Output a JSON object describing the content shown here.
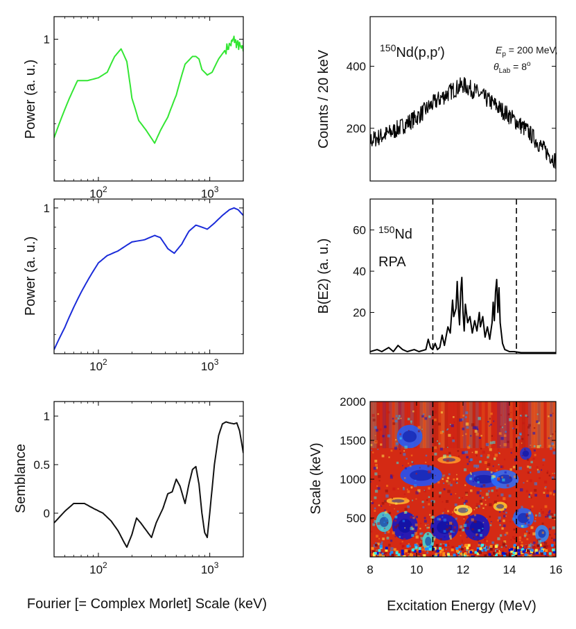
{
  "chart_data": [
    {
      "id": "p1",
      "type": "line",
      "scale": "loglog",
      "xlim": [
        40,
        2000
      ],
      "ylim": [
        0.55,
        1.1
      ],
      "ylabel": "Power (a. u.)",
      "xlabel": "",
      "xticks": [
        {
          "v": 100,
          "base": "10",
          "exp": "2"
        },
        {
          "v": 1000,
          "base": "10",
          "exp": "3"
        }
      ],
      "yticks": [
        {
          "v": 1,
          "label": "1"
        }
      ],
      "series": [
        {
          "name": "power",
          "color": "#33e633",
          "points": [
            [
              40,
              0.66
            ],
            [
              55,
              0.78
            ],
            [
              65,
              0.84
            ],
            [
              80,
              0.84
            ],
            [
              100,
              0.85
            ],
            [
              120,
              0.87
            ],
            [
              140,
              0.93
            ],
            [
              160,
              0.96
            ],
            [
              180,
              0.91
            ],
            [
              200,
              0.78
            ],
            [
              230,
              0.71
            ],
            [
              270,
              0.68
            ],
            [
              320,
              0.645
            ],
            [
              360,
              0.68
            ],
            [
              420,
              0.72
            ],
            [
              500,
              0.79
            ],
            [
              600,
              0.9
            ],
            [
              700,
              0.93
            ],
            [
              750,
              0.93
            ],
            [
              800,
              0.92
            ],
            [
              850,
              0.88
            ],
            [
              950,
              0.86
            ],
            [
              1050,
              0.87
            ],
            [
              1200,
              0.92
            ],
            [
              1400,
              0.96
            ],
            [
              1550,
              0.98
            ],
            [
              1650,
              1.0
            ],
            [
              1750,
              0.98
            ],
            [
              1850,
              0.97
            ],
            [
              2000,
              0.95
            ]
          ]
        }
      ]
    },
    {
      "id": "p2",
      "type": "line",
      "scale": "loglog",
      "xlim": [
        40,
        2000
      ],
      "ylim": [
        0.45,
        1.05
      ],
      "ylabel": "Power (a. u.)",
      "xlabel": "",
      "xticks": [
        {
          "v": 100,
          "base": "10",
          "exp": "2"
        },
        {
          "v": 1000,
          "base": "10",
          "exp": "3"
        }
      ],
      "yticks": [
        {
          "v": 1,
          "label": "1"
        }
      ],
      "series": [
        {
          "name": "power",
          "color": "#1a2bd9",
          "points": [
            [
              40,
              0.46
            ],
            [
              50,
              0.52
            ],
            [
              60,
              0.58
            ],
            [
              70,
              0.63
            ],
            [
              85,
              0.69
            ],
            [
              100,
              0.74
            ],
            [
              120,
              0.77
            ],
            [
              150,
              0.79
            ],
            [
              200,
              0.83
            ],
            [
              260,
              0.84
            ],
            [
              320,
              0.86
            ],
            [
              360,
              0.85
            ],
            [
              420,
              0.8
            ],
            [
              480,
              0.78
            ],
            [
              560,
              0.82
            ],
            [
              650,
              0.88
            ],
            [
              750,
              0.91
            ],
            [
              850,
              0.9
            ],
            [
              950,
              0.89
            ],
            [
              1100,
              0.92
            ],
            [
              1300,
              0.96
            ],
            [
              1500,
              0.99
            ],
            [
              1650,
              1.0
            ],
            [
              1800,
              0.99
            ],
            [
              2000,
              0.96
            ]
          ]
        }
      ]
    },
    {
      "id": "p3",
      "type": "line",
      "scale": "semilogx",
      "xlim": [
        40,
        2000
      ],
      "ylim": [
        -0.45,
        1.15
      ],
      "ylabel": "Semblance",
      "xlabel": "Fourier [= Complex Morlet] Scale (keV)",
      "xticks": [
        {
          "v": 100,
          "base": "10",
          "exp": "2"
        },
        {
          "v": 1000,
          "base": "10",
          "exp": "3"
        }
      ],
      "yticks": [
        {
          "v": 0,
          "label": "0"
        },
        {
          "v": 0.5,
          "label": "0.5"
        },
        {
          "v": 1,
          "label": "1"
        }
      ],
      "series": [
        {
          "name": "semblance",
          "color": "#111111",
          "points": [
            [
              40,
              -0.1
            ],
            [
              50,
              0.02
            ],
            [
              60,
              0.1
            ],
            [
              75,
              0.1
            ],
            [
              90,
              0.05
            ],
            [
              110,
              0.0
            ],
            [
              130,
              -0.08
            ],
            [
              150,
              -0.18
            ],
            [
              170,
              -0.3
            ],
            [
              180,
              -0.35
            ],
            [
              200,
              -0.22
            ],
            [
              220,
              -0.05
            ],
            [
              240,
              -0.1
            ],
            [
              270,
              -0.18
            ],
            [
              300,
              -0.25
            ],
            [
              330,
              -0.1
            ],
            [
              380,
              0.05
            ],
            [
              420,
              0.2
            ],
            [
              460,
              0.22
            ],
            [
              500,
              0.35
            ],
            [
              540,
              0.28
            ],
            [
              600,
              0.1
            ],
            [
              650,
              0.3
            ],
            [
              700,
              0.45
            ],
            [
              750,
              0.48
            ],
            [
              800,
              0.3
            ],
            [
              850,
              0.0
            ],
            [
              900,
              -0.2
            ],
            [
              950,
              -0.25
            ],
            [
              1000,
              0.0
            ],
            [
              1100,
              0.5
            ],
            [
              1200,
              0.8
            ],
            [
              1300,
              0.92
            ],
            [
              1400,
              0.94
            ],
            [
              1500,
              0.93
            ],
            [
              1650,
              0.92
            ],
            [
              1750,
              0.93
            ],
            [
              1850,
              0.85
            ],
            [
              1950,
              0.7
            ],
            [
              2000,
              0.62
            ]
          ]
        }
      ]
    },
    {
      "id": "p4",
      "type": "line",
      "scale": "linear",
      "xlim": [
        8,
        16
      ],
      "ylim": [
        30,
        560
      ],
      "ylabel": "Counts / 20 keV",
      "xlabel": "",
      "yticks": [
        {
          "v": 200,
          "label": "200"
        },
        {
          "v": 400,
          "label": "400"
        }
      ],
      "annotations": {
        "nucleus_mass": "150",
        "reaction": "Nd(p,p′)",
        "ep_symbol": "E",
        "ep_sub": "p",
        "ep_value": " = 200 MeV,",
        "theta_symbol": "θ",
        "theta_sub": "Lab",
        "theta_value": " = 8",
        "theta_unit": "o"
      },
      "series": [
        {
          "name": "spectrum",
          "color": "#000000",
          "envelope": [
            [
              8,
              160
            ],
            [
              9,
              190
            ],
            [
              10,
              235
            ],
            [
              10.8,
              285
            ],
            [
              11.5,
              320
            ],
            [
              12,
              340
            ],
            [
              12.5,
              320
            ],
            [
              13.2,
              285
            ],
            [
              14,
              240
            ],
            [
              14.8,
              190
            ],
            [
              15.5,
              130
            ],
            [
              16,
              95
            ]
          ],
          "noise": 28,
          "step": 0.02
        }
      ]
    },
    {
      "id": "p5",
      "type": "line",
      "scale": "linear",
      "xlim": [
        8,
        16
      ],
      "ylim": [
        0,
        75
      ],
      "ylabel": "B(E2) (a. u.)",
      "xlabel": "",
      "yticks": [
        {
          "v": 20,
          "label": "20"
        },
        {
          "v": 40,
          "label": "40"
        },
        {
          "v": 60,
          "label": "60"
        }
      ],
      "annotations": {
        "nucleus_mass": "150",
        "nucleus": "Nd",
        "model": "RPA"
      },
      "dashed_x": [
        10.7,
        14.3
      ],
      "series": [
        {
          "name": "strength",
          "color": "#000000",
          "points": [
            [
              8,
              1
            ],
            [
              8.3,
              2
            ],
            [
              8.5,
              1
            ],
            [
              8.8,
              3
            ],
            [
              9.0,
              1
            ],
            [
              9.2,
              4
            ],
            [
              9.4,
              2
            ],
            [
              9.6,
              1
            ],
            [
              9.9,
              2
            ],
            [
              10.1,
              1
            ],
            [
              10.4,
              2
            ],
            [
              10.5,
              7
            ],
            [
              10.6,
              3
            ],
            [
              10.7,
              2
            ],
            [
              10.8,
              5
            ],
            [
              10.9,
              2
            ],
            [
              11.0,
              3
            ],
            [
              11.1,
              9
            ],
            [
              11.2,
              4
            ],
            [
              11.35,
              13
            ],
            [
              11.45,
              10
            ],
            [
              11.55,
              26
            ],
            [
              11.6,
              18
            ],
            [
              11.7,
              22
            ],
            [
              11.75,
              35
            ],
            [
              11.8,
              22
            ],
            [
              11.85,
              14
            ],
            [
              11.9,
              30
            ],
            [
              11.95,
              37
            ],
            [
              12.0,
              20
            ],
            [
              12.05,
              11
            ],
            [
              12.1,
              24
            ],
            [
              12.2,
              15
            ],
            [
              12.3,
              18
            ],
            [
              12.4,
              10
            ],
            [
              12.5,
              16
            ],
            [
              12.6,
              11
            ],
            [
              12.7,
              20
            ],
            [
              12.75,
              13
            ],
            [
              12.85,
              18
            ],
            [
              12.95,
              8
            ],
            [
              13.05,
              13
            ],
            [
              13.15,
              7
            ],
            [
              13.25,
              15
            ],
            [
              13.3,
              25
            ],
            [
              13.35,
              16
            ],
            [
              13.4,
              30
            ],
            [
              13.45,
              36
            ],
            [
              13.5,
              20
            ],
            [
              13.55,
              32
            ],
            [
              13.6,
              15
            ],
            [
              13.7,
              5
            ],
            [
              13.8,
              2
            ],
            [
              14.0,
              1
            ],
            [
              14.2,
              1
            ],
            [
              14.5,
              0.5
            ],
            [
              15,
              0.5
            ],
            [
              16,
              0.5
            ]
          ]
        }
      ]
    },
    {
      "id": "p6",
      "type": "heatmap",
      "scale": "linear",
      "xlim": [
        8,
        16
      ],
      "ylim": [
        0,
        2000
      ],
      "ylabel": "Scale (keV)",
      "xlabel": "Excitation Energy (MeV)",
      "xticks": [
        {
          "v": 8,
          "label": "8"
        },
        {
          "v": 10,
          "label": "10"
        },
        {
          "v": 12,
          "label": "12"
        },
        {
          "v": 14,
          "label": "14"
        },
        {
          "v": 16,
          "label": "16"
        }
      ],
      "yticks": [
        {
          "v": 500,
          "label": "500"
        },
        {
          "v": 1000,
          "label": "1000"
        },
        {
          "v": 1500,
          "label": "1500"
        },
        {
          "v": 2000,
          "label": "2000"
        }
      ],
      "dashed_x": [
        10.7,
        14.3
      ],
      "colormap": [
        "#0b12c8",
        "#1f8cff",
        "#39e6e6",
        "#ffe84d",
        "#ff8c1a",
        "#c81414",
        "#8c0f0f"
      ],
      "background": "#d42a14",
      "blobs": [
        {
          "x": 9.7,
          "y": 1550,
          "rx": 0.55,
          "ry": 150,
          "c": "#2060ff"
        },
        {
          "x": 10.2,
          "y": 1050,
          "rx": 0.9,
          "ry": 140,
          "c": "#1a55ff"
        },
        {
          "x": 12.9,
          "y": 1000,
          "rx": 0.8,
          "ry": 110,
          "c": "#1840e6"
        },
        {
          "x": 13.8,
          "y": 1000,
          "rx": 0.6,
          "ry": 120,
          "c": "#2a70ff"
        },
        {
          "x": 14.7,
          "y": 1330,
          "rx": 0.25,
          "ry": 80,
          "c": "#1a33d9"
        },
        {
          "x": 9.5,
          "y": 400,
          "rx": 0.55,
          "ry": 180,
          "c": "#0a18cc"
        },
        {
          "x": 11.2,
          "y": 380,
          "rx": 0.6,
          "ry": 170,
          "c": "#0c1ad0"
        },
        {
          "x": 12.6,
          "y": 380,
          "rx": 0.55,
          "ry": 170,
          "c": "#0a18cc"
        },
        {
          "x": 14.6,
          "y": 500,
          "rx": 0.45,
          "ry": 130,
          "c": "#1e6aff"
        },
        {
          "x": 15.4,
          "y": 300,
          "rx": 0.3,
          "ry": 110,
          "c": "#2a8cff"
        },
        {
          "x": 10.5,
          "y": 200,
          "rx": 0.25,
          "ry": 120,
          "c": "#39e6e6"
        },
        {
          "x": 12.0,
          "y": 600,
          "rx": 0.4,
          "ry": 70,
          "c": "#ffe84d"
        },
        {
          "x": 8.6,
          "y": 450,
          "rx": 0.35,
          "ry": 130,
          "c": "#39d0e6"
        },
        {
          "x": 13.6,
          "y": 650,
          "rx": 0.3,
          "ry": 60,
          "c": "#ffcc33"
        },
        {
          "x": 9.2,
          "y": 720,
          "rx": 0.5,
          "ry": 45,
          "c": "#ffb833"
        },
        {
          "x": 11.4,
          "y": 1250,
          "rx": 0.5,
          "ry": 50,
          "c": "#ff9a2a"
        }
      ]
    }
  ]
}
